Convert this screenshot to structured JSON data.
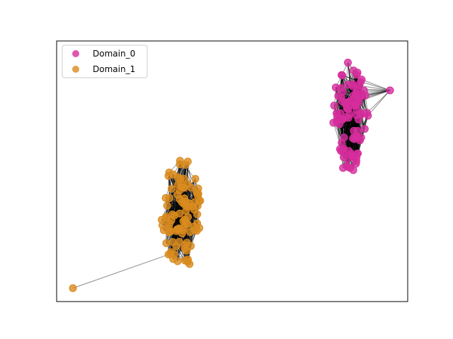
{
  "chart_data": {
    "type": "scatter",
    "subtype": "network-graph",
    "title": "",
    "xlabel": "",
    "ylabel": "",
    "axis_ticks": false,
    "grid": false,
    "legend_placement": "top-left",
    "series": [
      {
        "name": "Domain_0",
        "color": "#d62d9c",
        "edge_color": "#d62d9c",
        "cluster_center": [
          495,
          165
        ],
        "cluster_spread": [
          25,
          80
        ],
        "node_count": 95,
        "outlier": [
          551,
          128
        ],
        "outlier_links": 14
      },
      {
        "name": "Domain_1",
        "color": "#d98b1e",
        "edge_color": "#c47a14",
        "cluster_center": [
          256,
          302
        ],
        "cluster_spread": [
          28,
          82
        ],
        "node_count": 95,
        "outlier": [
          103,
          408
        ],
        "outlier_links": 1
      }
    ]
  },
  "legend": {
    "items": [
      {
        "label": "Domain_0",
        "color": "#d62d9c"
      },
      {
        "label": "Domain_1",
        "color": "#d98b1e"
      }
    ]
  }
}
